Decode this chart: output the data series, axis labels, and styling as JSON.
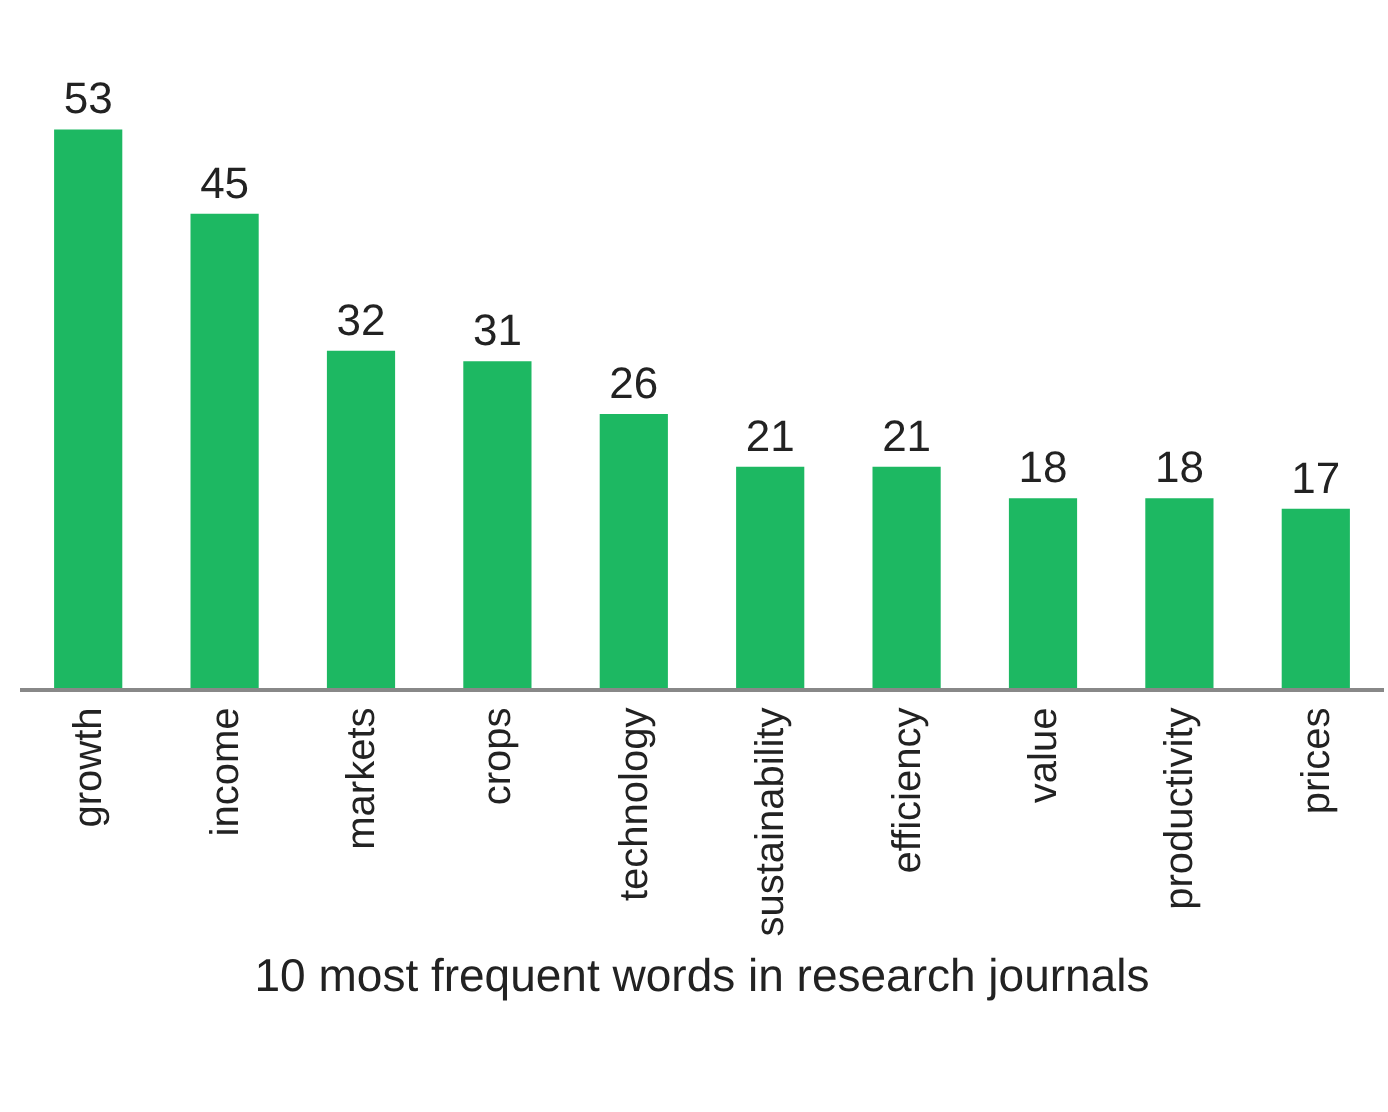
{
  "chart_data": {
    "type": "bar",
    "xlabel": "10 most frequent words in research journals",
    "categories": [
      "growth",
      "income",
      "markets",
      "crops",
      "technology",
      "sustainability",
      "efficiency",
      "value",
      "productivity",
      "prices"
    ],
    "values": [
      53,
      45,
      32,
      31,
      26,
      21,
      21,
      18,
      18,
      17
    ],
    "color": "#1db862",
    "data_labels": true
  }
}
